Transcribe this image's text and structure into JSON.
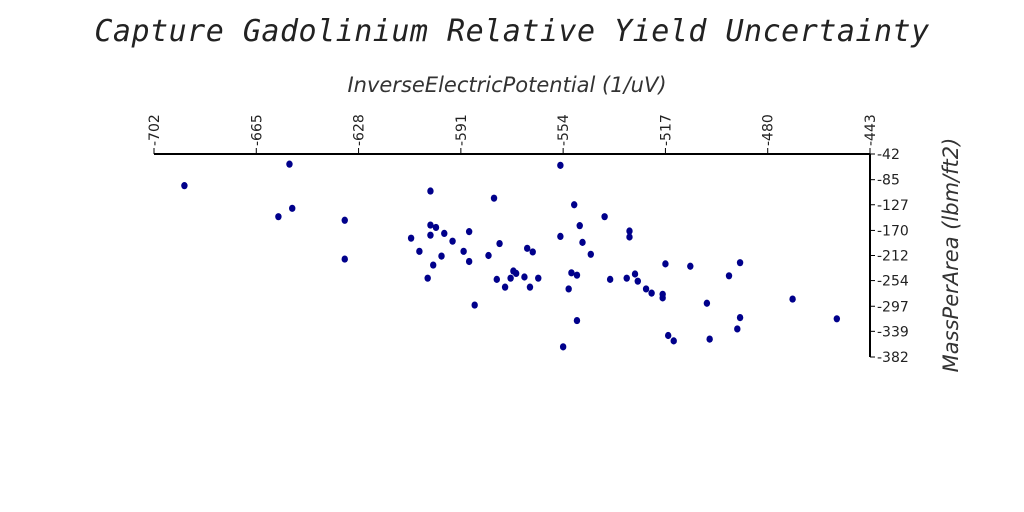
{
  "chart_data": {
    "type": "scatter",
    "title": "Capture Gadolinium Relative Yield Uncertainty",
    "xlabel": "InverseElectricPotential (1/uV)",
    "ylabel": "MassPerArea (lbm/ft2)",
    "xlim": [
      -702,
      -443
    ],
    "ylim": [
      -382,
      -42
    ],
    "x_ticks": [
      "-702",
      "-665",
      "-628",
      "-591",
      "-554",
      "-517",
      "-480",
      "-443"
    ],
    "y_ticks": [
      "-42",
      "-85",
      "-127",
      "-170",
      "-212",
      "-254",
      "-297",
      "-339",
      "-382"
    ],
    "x_axis_position": "top",
    "y_axis_position": "right",
    "grid": false,
    "marker_color": "#00008b",
    "points": [
      [
        -691,
        -95
      ],
      [
        -653,
        -59
      ],
      [
        -652,
        -133
      ],
      [
        -657,
        -147
      ],
      [
        -633,
        -153
      ],
      [
        -633,
        -218
      ],
      [
        -609,
        -183
      ],
      [
        -606,
        -205
      ],
      [
        -603,
        -250
      ],
      [
        -602,
        -104
      ],
      [
        -602,
        -161
      ],
      [
        -602,
        -178
      ],
      [
        -601,
        -228
      ],
      [
        -600,
        -165
      ],
      [
        -598,
        -213
      ],
      [
        -597,
        -175
      ],
      [
        -594,
        -188
      ],
      [
        -590,
        -205
      ],
      [
        -588,
        -222
      ],
      [
        -588,
        -172
      ],
      [
        -586,
        -295
      ],
      [
        -581,
        -212
      ],
      [
        -579,
        -116
      ],
      [
        -578,
        -252
      ],
      [
        -577,
        -192
      ],
      [
        -575,
        -265
      ],
      [
        -573,
        -250
      ],
      [
        -572,
        -238
      ],
      [
        -571,
        -242
      ],
      [
        -568,
        -248
      ],
      [
        -567,
        -200
      ],
      [
        -566,
        -265
      ],
      [
        -565,
        -206
      ],
      [
        -563,
        -250
      ],
      [
        -555,
        -61
      ],
      [
        -555,
        -180
      ],
      [
        -554,
        -365
      ],
      [
        -552,
        -268
      ],
      [
        -551,
        -241
      ],
      [
        -550,
        -127
      ],
      [
        -549,
        -245
      ],
      [
        -549,
        -321
      ],
      [
        -548,
        -162
      ],
      [
        -547,
        -190
      ],
      [
        -544,
        -210
      ],
      [
        -539,
        -147
      ],
      [
        -537,
        -252
      ],
      [
        -531,
        -250
      ],
      [
        -530,
        -171
      ],
      [
        -530,
        -181
      ],
      [
        -528,
        -243
      ],
      [
        -527,
        -255
      ],
      [
        -524,
        -268
      ],
      [
        -522,
        -275
      ],
      [
        -518,
        -283
      ],
      [
        -518,
        -277
      ],
      [
        -517,
        -226
      ],
      [
        -516,
        -346
      ],
      [
        -514,
        -355
      ],
      [
        -508,
        -230
      ],
      [
        -502,
        -292
      ],
      [
        -501,
        -352
      ],
      [
        -494,
        -246
      ],
      [
        -491,
        -335
      ],
      [
        -490,
        -316
      ],
      [
        -490,
        -224
      ],
      [
        -471,
        -285
      ],
      [
        -455,
        -318
      ]
    ]
  }
}
